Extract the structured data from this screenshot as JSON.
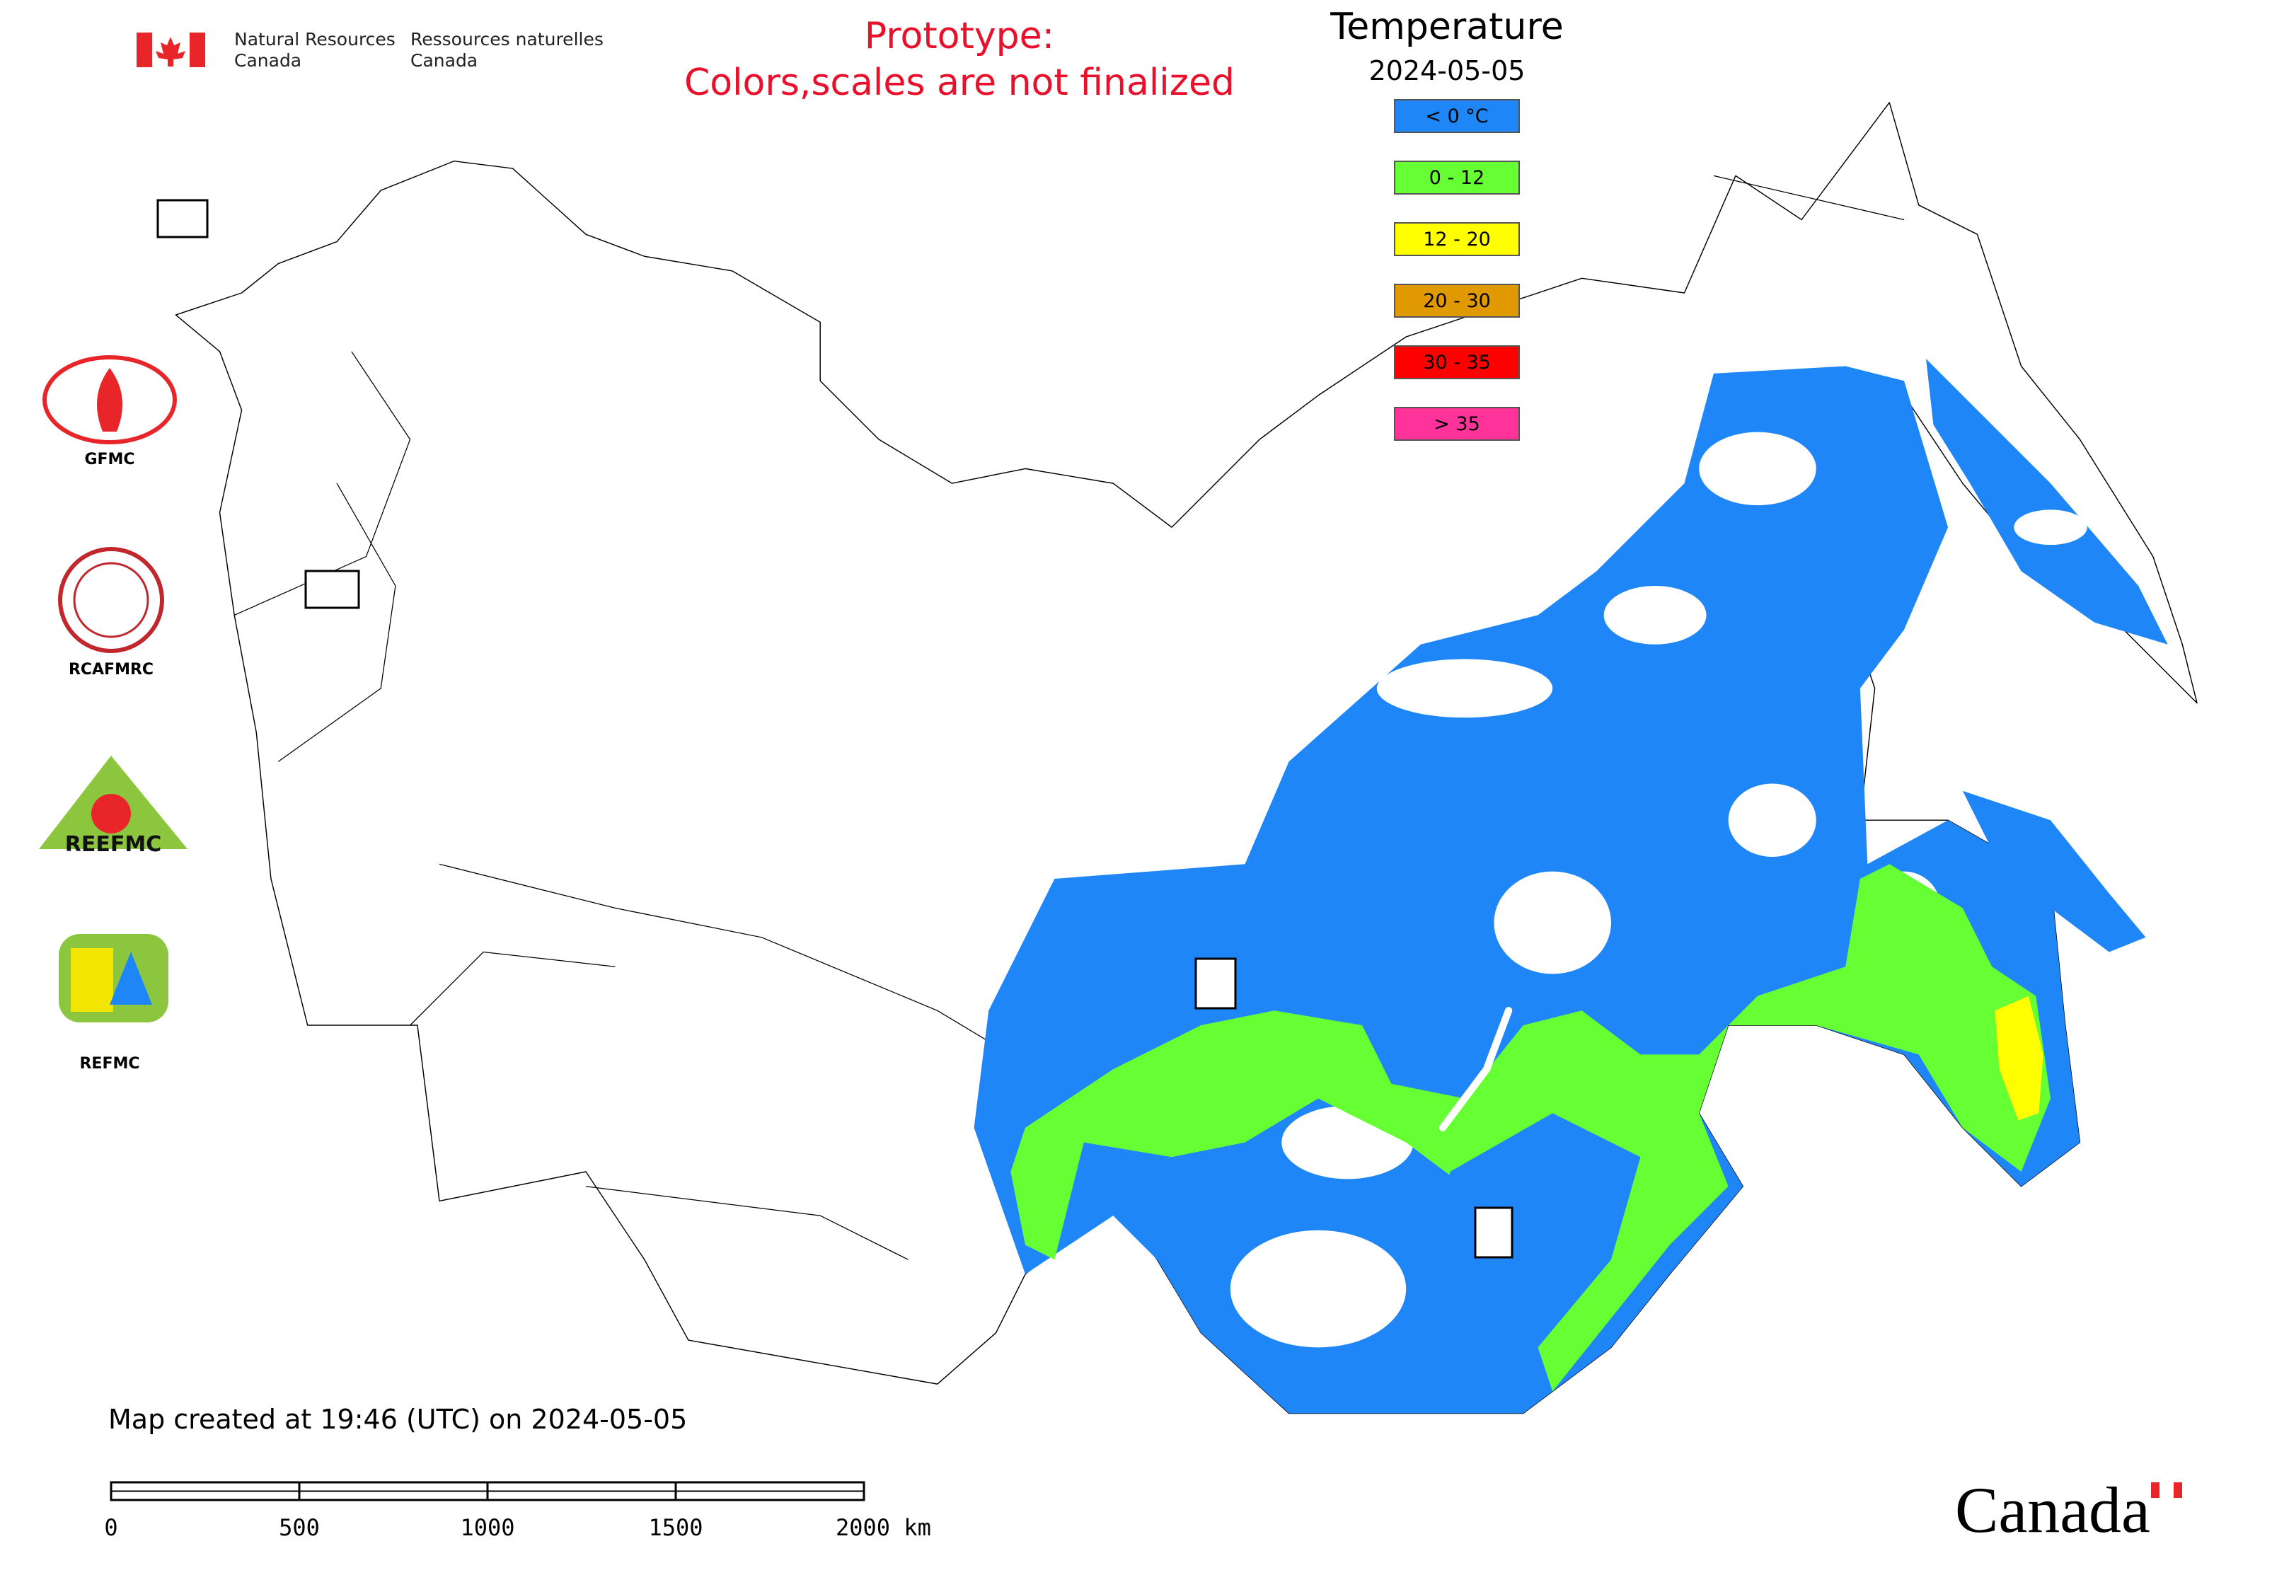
{
  "header": {
    "agency_en": [
      "Natural Resources",
      "Canada"
    ],
    "agency_fr": [
      "Ressources naturelles",
      "Canada"
    ],
    "notice": [
      "Prototype:",
      "Colors,scales are not finalized"
    ]
  },
  "legend": {
    "title": "Temperature",
    "date": "2024-05-05",
    "items": [
      {
        "label": "< 0 °C",
        "color": "#1f86f7"
      },
      {
        "label": "0 - 12",
        "color": "#66ff33"
      },
      {
        "label": "12 - 20",
        "color": "#ffff00"
      },
      {
        "label": "20 - 30",
        "color": "#e09a00"
      },
      {
        "label": "30 - 35",
        "color": "#ff0000"
      },
      {
        "label": "> 35",
        "color": "#ff3399"
      }
    ]
  },
  "logos": [
    "GFMC",
    "RCAFMRC",
    "REEFMC",
    "REFMC"
  ],
  "footer": {
    "created": "Map created at 19:46 (UTC) on 2024-05-05",
    "wordmark": "Canada"
  },
  "scale_bar": {
    "ticks": [
      0,
      500,
      1000,
      1500,
      {
        "value": 2000,
        "label": "2000 km"
      }
    ]
  }
}
